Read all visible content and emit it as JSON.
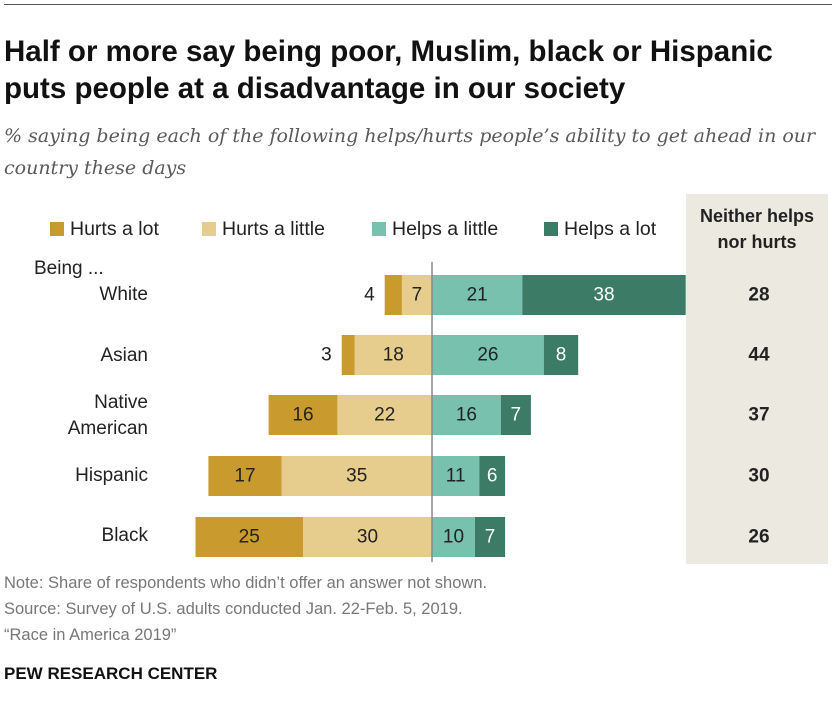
{
  "header": {
    "title": "Half or more say being poor, Muslim, black or Hispanic puts people at a disadvantage in our society",
    "subtitle": "% saying being each of the following helps/hurts people’s ability to get ahead in our country these days"
  },
  "legend": [
    {
      "label": "Hurts a lot",
      "color": "#c99a2e"
    },
    {
      "label": "Hurts a little",
      "color": "#e6cc8d"
    },
    {
      "label": "Helps a little",
      "color": "#78c1ae"
    },
    {
      "label": "Helps a lot",
      "color": "#3c7b65"
    }
  ],
  "neither_header": "Neither helps nor hurts",
  "being_label": "Being ...",
  "chart_data": {
    "type": "bar",
    "orientation": "horizontal-diverging",
    "categories": [
      "White",
      "Asian",
      "Native American",
      "Hispanic",
      "Black"
    ],
    "series": [
      {
        "name": "Hurts a lot",
        "values": [
          4,
          3,
          16,
          17,
          25
        ]
      },
      {
        "name": "Hurts a little",
        "values": [
          7,
          18,
          22,
          35,
          30
        ]
      },
      {
        "name": "Helps a little",
        "values": [
          21,
          26,
          16,
          11,
          10
        ]
      },
      {
        "name": "Helps a lot",
        "values": [
          38,
          8,
          7,
          6,
          7
        ]
      }
    ],
    "neither": {
      "name": "Neither helps nor hurts",
      "values": [
        28,
        44,
        37,
        30,
        26
      ]
    }
  },
  "category_lines": [
    [
      "White"
    ],
    [
      "Asian"
    ],
    [
      "Native",
      "American"
    ],
    [
      "Hispanic"
    ],
    [
      "Black"
    ]
  ],
  "notes": {
    "note": "Note: Share of respondents who didn’t offer an answer not shown.",
    "source": "Source: Survey of U.S. adults conducted Jan. 22-Feb. 5, 2019.",
    "report": "“Race in America 2019”"
  },
  "footer": "PEW RESEARCH CENTER"
}
